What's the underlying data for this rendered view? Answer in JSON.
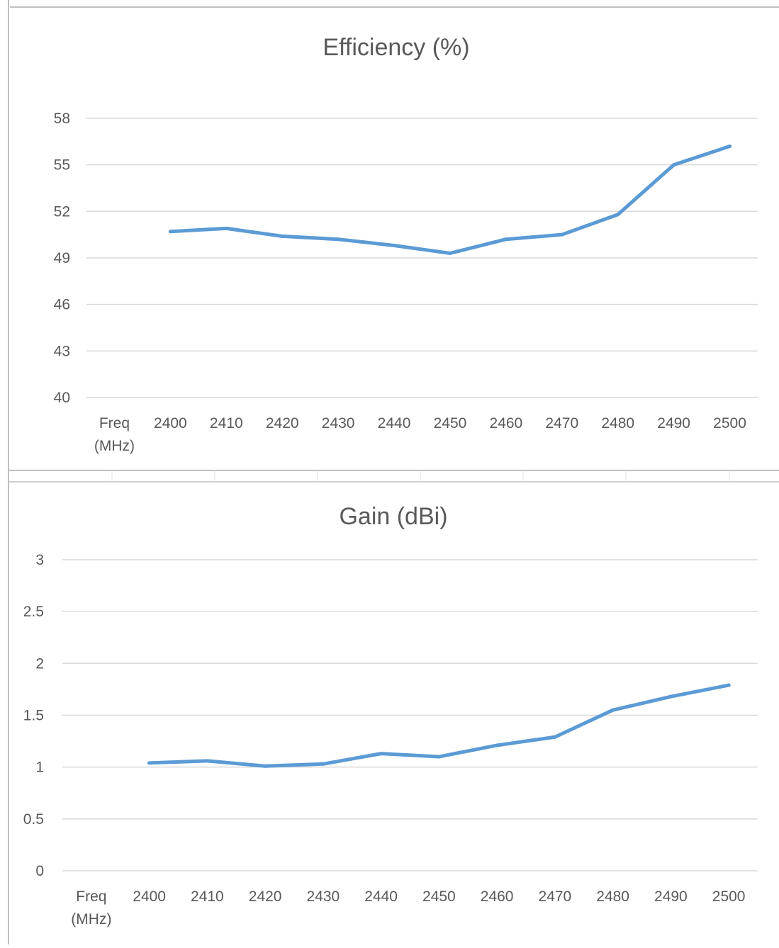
{
  "colors": {
    "line": "#5b9bd5",
    "grid": "#d9d9d9",
    "text": "#595959",
    "title": "#595959",
    "background": "#ffffff",
    "sheet_border": "#bfbfbf"
  },
  "chart_data": [
    {
      "type": "line",
      "title": "Efficiency (%)",
      "x_label_line1": "Freq",
      "x_label_line2": "(MHz)",
      "categories": [
        "2400",
        "2410",
        "2420",
        "2430",
        "2440",
        "2450",
        "2460",
        "2470",
        "2480",
        "2490",
        "2500"
      ],
      "y_ticks": [
        "58",
        "55",
        "52",
        "49",
        "46",
        "43",
        "40"
      ],
      "ylim": [
        40,
        58
      ],
      "grid": true,
      "legend": "none",
      "series": [
        {
          "values": [
            50.7,
            50.9,
            50.4,
            50.2,
            49.8,
            49.3,
            50.2,
            50.5,
            51.8,
            55.0,
            56.2
          ]
        }
      ]
    },
    {
      "type": "line",
      "title": "Gain (dBi)",
      "x_label_line1": "Freq",
      "x_label_line2": "(MHz)",
      "categories": [
        "2400",
        "2410",
        "2420",
        "2430",
        "2440",
        "2450",
        "2460",
        "2470",
        "2480",
        "2490",
        "2500"
      ],
      "y_ticks": [
        "3",
        "2.5",
        "2",
        "1.5",
        "1",
        "0.5",
        "0"
      ],
      "ylim": [
        0,
        3
      ],
      "grid": true,
      "legend": "none",
      "series": [
        {
          "values": [
            1.04,
            1.06,
            1.01,
            1.03,
            1.13,
            1.1,
            1.21,
            1.29,
            1.55,
            1.68,
            1.79
          ]
        }
      ]
    }
  ]
}
